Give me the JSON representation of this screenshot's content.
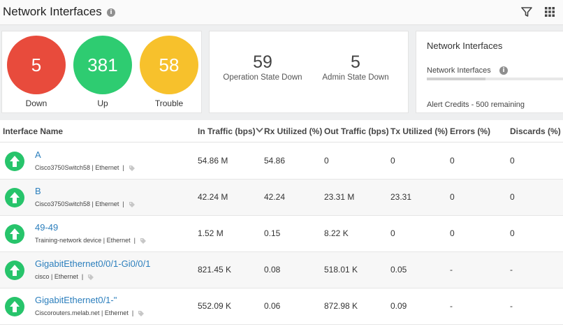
{
  "header": {
    "title": "Network Interfaces"
  },
  "summary": {
    "status": [
      {
        "value": "5",
        "label": "Down",
        "color": "#e84b3c"
      },
      {
        "value": "381",
        "label": "Up",
        "color": "#2ecc71"
      },
      {
        "value": "58",
        "label": "Trouble",
        "color": "#f7c12c"
      }
    ],
    "states": [
      {
        "value": "59",
        "label": "Operation State Down"
      },
      {
        "value": "5",
        "label": "Admin State Down"
      }
    ],
    "credits": {
      "title": "Network Interfaces",
      "subtitle": "Network Interfaces",
      "usage_fraction": 0.43,
      "note": "Alert Credits - 500 remaining"
    }
  },
  "table": {
    "columns": [
      "Interface Name",
      "In Traffic (bps)",
      "Rx Utilized (%)",
      "Out Traffic (bps)",
      "Tx Utilized (%)",
      "Errors (%)",
      "Discards (%)"
    ],
    "rows": [
      {
        "name": "A",
        "device": "Cisco3750Switch58",
        "type": "Ethernet",
        "in": "54.86 M",
        "rx": "54.86",
        "out": "0",
        "tx": "0",
        "errors": "0",
        "discards": "0"
      },
      {
        "name": "B",
        "device": "Cisco3750Switch58",
        "type": "Ethernet",
        "in": "42.24 M",
        "rx": "42.24",
        "out": "23.31 M",
        "tx": "23.31",
        "errors": "0",
        "discards": "0"
      },
      {
        "name": "49-49",
        "device": "Training-network device",
        "type": "Ethernet",
        "in": "1.52 M",
        "rx": "0.15",
        "out": "8.22 K",
        "tx": "0",
        "errors": "0",
        "discards": "0"
      },
      {
        "name": "GigabitEthernet0/0/1-Gi0/0/1",
        "device": "cisco",
        "type": "Ethernet",
        "in": "821.45 K",
        "rx": "0.08",
        "out": "518.01 K",
        "tx": "0.05",
        "errors": "-",
        "discards": "-"
      },
      {
        "name": "GigabitEthernet0/1-\"",
        "device": "Ciscorouters.melab.net",
        "type": "Ethernet",
        "in": "552.09 K",
        "rx": "0.06",
        "out": "872.98 K",
        "tx": "0.09",
        "errors": "-",
        "discards": "-"
      }
    ]
  },
  "icons": {
    "title_info": "info-icon",
    "filter": "filter-icon",
    "grid": "grid-icon",
    "sort": "sort-desc-icon",
    "row_status": "arrow-up-icon",
    "tag": "tag-icon"
  }
}
